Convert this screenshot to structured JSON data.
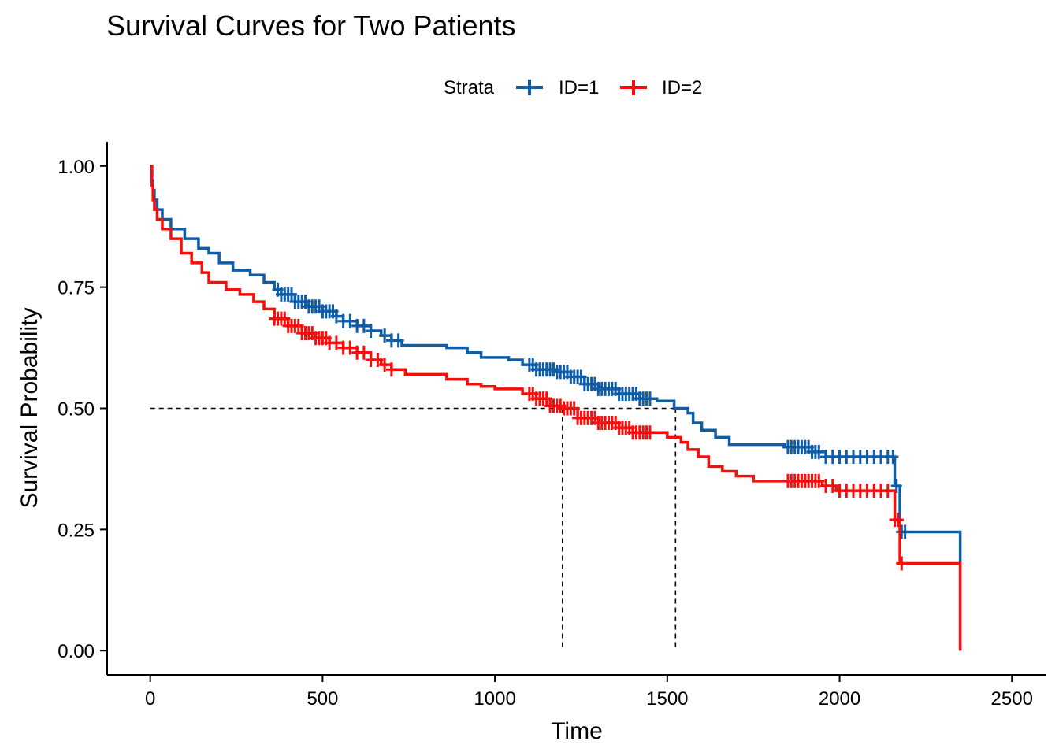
{
  "chart_data": {
    "type": "line",
    "title": "Survival Curves for Two Patients",
    "xlabel": "Time",
    "ylabel": "Survival Probability",
    "xlim": [
      -125,
      2600
    ],
    "ylim": [
      -0.05,
      1.05
    ],
    "xticks": [
      0,
      500,
      1000,
      1500,
      2000,
      2500
    ],
    "xtick_labels": [
      "0",
      "500",
      "1000",
      "1500",
      "2000",
      "2500"
    ],
    "yticks": [
      0,
      0.25,
      0.5,
      0.75,
      1.0
    ],
    "ytick_labels": [
      "0.00",
      "0.25",
      "0.50",
      "0.75",
      "1.00"
    ],
    "grid": false,
    "legend": {
      "position": "top",
      "title": "Strata",
      "entries": [
        "ID=1",
        "ID=2"
      ]
    },
    "median_lines": {
      "y": 0.5,
      "x": [
        1196,
        1524
      ]
    },
    "series": [
      {
        "name": "ID=1",
        "color": "#0F5DA6",
        "step": [
          [
            0,
            1.0
          ],
          [
            5,
            0.97
          ],
          [
            8,
            0.95
          ],
          [
            12,
            0.93
          ],
          [
            20,
            0.91
          ],
          [
            35,
            0.89
          ],
          [
            60,
            0.87
          ],
          [
            100,
            0.85
          ],
          [
            140,
            0.83
          ],
          [
            170,
            0.82
          ],
          [
            200,
            0.8
          ],
          [
            240,
            0.785
          ],
          [
            290,
            0.775
          ],
          [
            330,
            0.76
          ],
          [
            360,
            0.745
          ],
          [
            380,
            0.735
          ],
          [
            420,
            0.72
          ],
          [
            460,
            0.71
          ],
          [
            500,
            0.7
          ],
          [
            540,
            0.69
          ],
          [
            560,
            0.68
          ],
          [
            600,
            0.67
          ],
          [
            640,
            0.66
          ],
          [
            670,
            0.65
          ],
          [
            700,
            0.64
          ],
          [
            730,
            0.63
          ],
          [
            860,
            0.625
          ],
          [
            920,
            0.615
          ],
          [
            960,
            0.605
          ],
          [
            1040,
            0.6
          ],
          [
            1080,
            0.59
          ],
          [
            1120,
            0.58
          ],
          [
            1180,
            0.575
          ],
          [
            1220,
            0.565
          ],
          [
            1260,
            0.55
          ],
          [
            1300,
            0.54
          ],
          [
            1360,
            0.53
          ],
          [
            1420,
            0.52
          ],
          [
            1470,
            0.515
          ],
          [
            1520,
            0.5
          ],
          [
            1560,
            0.49
          ],
          [
            1575,
            0.47
          ],
          [
            1600,
            0.455
          ],
          [
            1640,
            0.44
          ],
          [
            1680,
            0.425
          ],
          [
            1840,
            0.42
          ],
          [
            1920,
            0.41
          ],
          [
            1960,
            0.4
          ],
          [
            2160,
            0.34
          ],
          [
            2175,
            0.245
          ],
          [
            2350,
            0.0
          ]
        ],
        "censor_times": [
          370,
          380,
          390,
          400,
          410,
          420,
          430,
          440,
          450,
          460,
          470,
          480,
          490,
          500,
          510,
          520,
          530,
          540,
          560,
          580,
          600,
          620,
          640,
          680,
          700,
          720,
          1100,
          1110,
          1120,
          1130,
          1140,
          1150,
          1160,
          1170,
          1180,
          1190,
          1200,
          1210,
          1220,
          1230,
          1240,
          1250,
          1260,
          1270,
          1280,
          1290,
          1300,
          1310,
          1320,
          1330,
          1340,
          1350,
          1360,
          1370,
          1380,
          1390,
          1400,
          1410,
          1420,
          1430,
          1440,
          1450,
          1850,
          1860,
          1870,
          1880,
          1890,
          1900,
          1910,
          1920,
          1930,
          1940,
          1960,
          1980,
          2000,
          2020,
          2040,
          2060,
          2080,
          2100,
          2120,
          2140,
          2155,
          2165,
          2180,
          2190
        ]
      },
      {
        "name": "ID=2",
        "color": "#F80D0D",
        "step": [
          [
            0,
            1.0
          ],
          [
            5,
            0.96
          ],
          [
            8,
            0.93
          ],
          [
            12,
            0.91
          ],
          [
            20,
            0.89
          ],
          [
            35,
            0.87
          ],
          [
            60,
            0.85
          ],
          [
            90,
            0.82
          ],
          [
            120,
            0.8
          ],
          [
            150,
            0.78
          ],
          [
            170,
            0.76
          ],
          [
            220,
            0.745
          ],
          [
            260,
            0.735
          ],
          [
            300,
            0.72
          ],
          [
            330,
            0.705
          ],
          [
            360,
            0.685
          ],
          [
            400,
            0.67
          ],
          [
            440,
            0.655
          ],
          [
            480,
            0.645
          ],
          [
            520,
            0.635
          ],
          [
            560,
            0.625
          ],
          [
            600,
            0.615
          ],
          [
            640,
            0.6
          ],
          [
            670,
            0.59
          ],
          [
            700,
            0.58
          ],
          [
            740,
            0.57
          ],
          [
            860,
            0.56
          ],
          [
            920,
            0.55
          ],
          [
            960,
            0.545
          ],
          [
            1000,
            0.54
          ],
          [
            1080,
            0.53
          ],
          [
            1120,
            0.52
          ],
          [
            1160,
            0.505
          ],
          [
            1196,
            0.5
          ],
          [
            1240,
            0.48
          ],
          [
            1300,
            0.47
          ],
          [
            1360,
            0.46
          ],
          [
            1400,
            0.45
          ],
          [
            1500,
            0.44
          ],
          [
            1540,
            0.43
          ],
          [
            1560,
            0.415
          ],
          [
            1590,
            0.4
          ],
          [
            1620,
            0.38
          ],
          [
            1660,
            0.37
          ],
          [
            1700,
            0.36
          ],
          [
            1750,
            0.35
          ],
          [
            1950,
            0.34
          ],
          [
            1990,
            0.33
          ],
          [
            2160,
            0.27
          ],
          [
            2175,
            0.18
          ],
          [
            2350,
            0.0
          ]
        ],
        "censor_times": [
          360,
          370,
          380,
          390,
          400,
          410,
          420,
          430,
          440,
          450,
          460,
          470,
          480,
          490,
          500,
          510,
          520,
          540,
          560,
          580,
          600,
          620,
          640,
          660,
          680,
          700,
          1100,
          1110,
          1120,
          1130,
          1140,
          1150,
          1160,
          1170,
          1180,
          1190,
          1200,
          1210,
          1220,
          1230,
          1240,
          1250,
          1260,
          1270,
          1280,
          1290,
          1300,
          1310,
          1320,
          1330,
          1340,
          1350,
          1360,
          1370,
          1380,
          1390,
          1400,
          1410,
          1420,
          1430,
          1440,
          1450,
          1850,
          1860,
          1870,
          1880,
          1890,
          1900,
          1910,
          1920,
          1930,
          1940,
          1960,
          1980,
          2000,
          2020,
          2040,
          2060,
          2080,
          2100,
          2120,
          2140,
          2160,
          2170,
          2180
        ]
      }
    ]
  }
}
